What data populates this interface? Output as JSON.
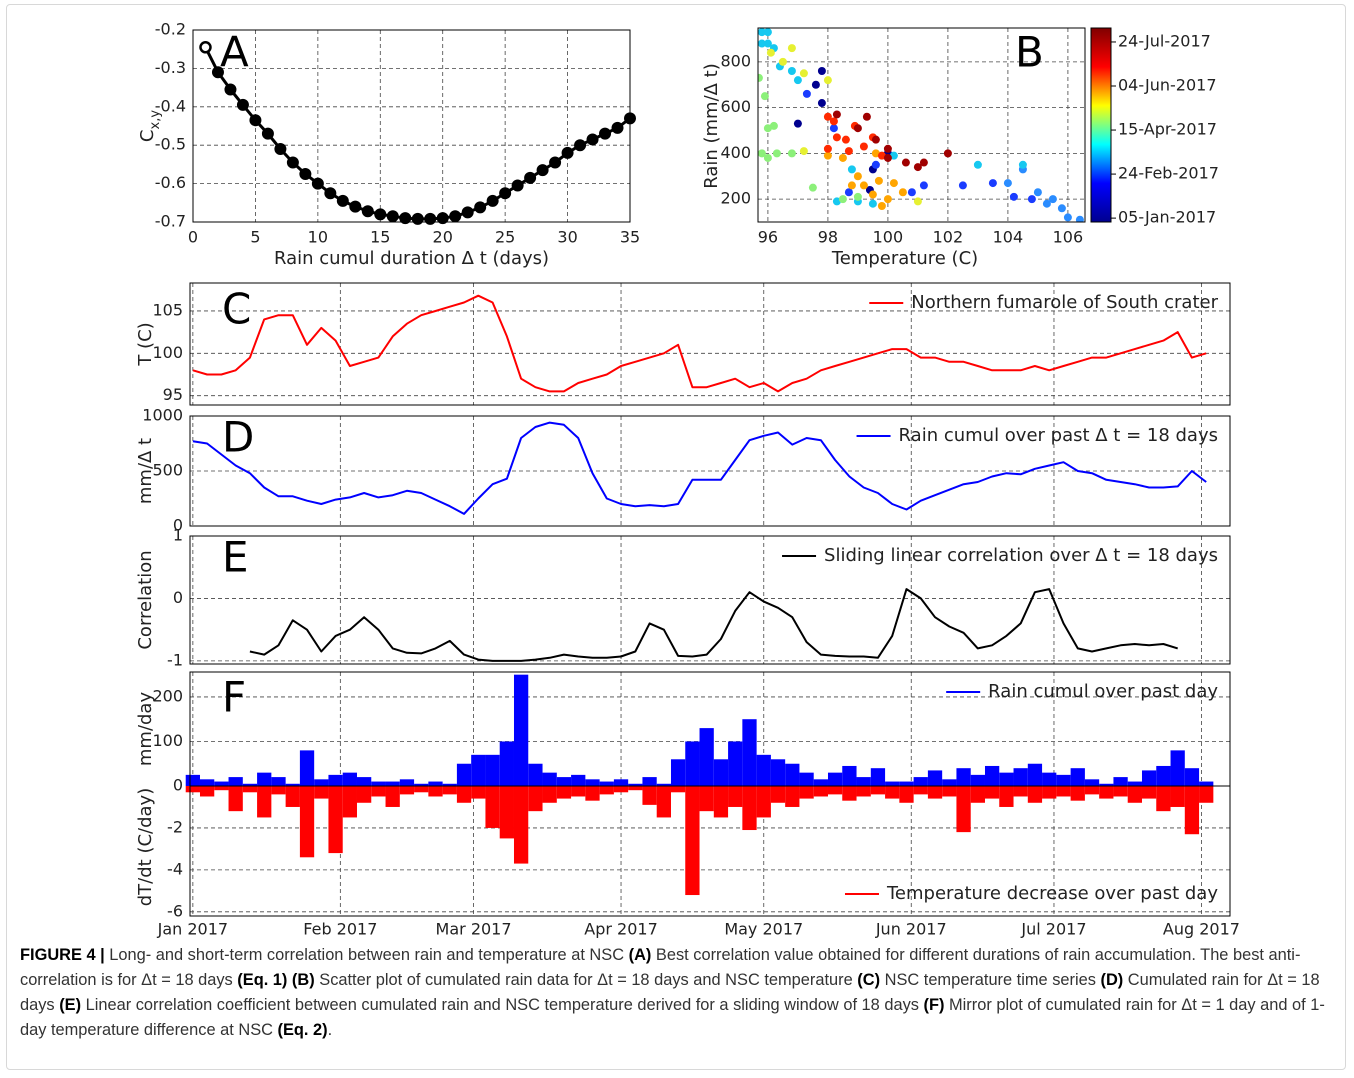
{
  "chart_data": [
    {
      "type": "line",
      "annotation": "A",
      "markers": true,
      "color": "#000000",
      "grid": true,
      "x": [
        1,
        2,
        3,
        4,
        5,
        6,
        7,
        8,
        9,
        10,
        11,
        12,
        13,
        14,
        15,
        16,
        17,
        18,
        19,
        20,
        21,
        22,
        23,
        24,
        25,
        26,
        27,
        28,
        29,
        30,
        31,
        32,
        33,
        34,
        35
      ],
      "values": [
        -0.245,
        -0.31,
        -0.355,
        -0.395,
        -0.435,
        -0.47,
        -0.51,
        -0.545,
        -0.575,
        -0.6,
        -0.625,
        -0.645,
        -0.66,
        -0.672,
        -0.68,
        -0.685,
        -0.69,
        -0.692,
        -0.692,
        -0.69,
        -0.685,
        -0.675,
        -0.662,
        -0.645,
        -0.625,
        -0.605,
        -0.585,
        -0.565,
        -0.545,
        -0.52,
        -0.5,
        -0.485,
        -0.47,
        -0.455,
        -0.43
      ],
      "xlim": [
        0,
        35
      ],
      "xticks": [
        0,
        5,
        10,
        15,
        20,
        25,
        30,
        35
      ],
      "ylim": [
        -0.7,
        -0.2
      ],
      "yticks": [
        -0.7,
        -0.6,
        -0.5,
        -0.4,
        -0.3,
        -0.2
      ],
      "xlabel": "Rain cumul duration Δ t (days)",
      "ylabel": {
        "text": "C",
        "subscript": "x,y"
      }
    },
    {
      "type": "scatter",
      "annotation": "B",
      "grid": true,
      "x": [
        104.5,
        104,
        105,
        105.5,
        106,
        106.4,
        105.8,
        104.2,
        103.5,
        102.5,
        101.2,
        100.8,
        104.5,
        103,
        104.8,
        105.3,
        97.8,
        97.6,
        97.3,
        97.8,
        98.2,
        97,
        99.5,
        98.7,
        99.6,
        100,
        99.4,
        95.8,
        96,
        95.8,
        96,
        96.2,
        96.4,
        96.8,
        97,
        99.5,
        98.3,
        100.2,
        98.8,
        99,
        95.7,
        95.9,
        96.1,
        96.5,
        96.8,
        97.2,
        98,
        96.2,
        96,
        95.8,
        96,
        96.3,
        96.8,
        97.5,
        98.5,
        99,
        101,
        97.2,
        98,
        98.5,
        99,
        99.2,
        99.7,
        100,
        99.5,
        98.8,
        99.8,
        100.5,
        99.6,
        100.2,
        98,
        98.2,
        98.6,
        98.9,
        99.2,
        99.8,
        98.3,
        99.5,
        98,
        98.7,
        99.6,
        100,
        100.6,
        101.2,
        102,
        100,
        99,
        101,
        98.3,
        99.3
      ],
      "y": [
        330,
        270,
        230,
        200,
        120,
        110,
        160,
        210,
        270,
        260,
        260,
        230,
        350,
        350,
        200,
        180,
        760,
        700,
        660,
        620,
        510,
        530,
        330,
        230,
        350,
        400,
        240,
        930,
        930,
        880,
        880,
        860,
        780,
        760,
        720,
        180,
        190,
        390,
        330,
        190,
        730,
        650,
        840,
        800,
        860,
        750,
        720,
        520,
        510,
        400,
        380,
        400,
        400,
        250,
        200,
        210,
        190,
        410,
        390,
        380,
        300,
        260,
        280,
        200,
        220,
        260,
        170,
        230,
        400,
        270,
        560,
        540,
        460,
        520,
        430,
        390,
        470,
        470,
        420,
        410,
        460,
        420,
        360,
        360,
        400,
        380,
        510,
        340,
        570,
        560
      ],
      "colors": [
        "#2a8cff",
        "#2a8cff",
        "#2a8cff",
        "#2a8cff",
        "#2a8cff",
        "#2a8cff",
        "#2a8cff",
        "#1a3cff",
        "#1a3cff",
        "#1a3cff",
        "#1a3cff",
        "#1a3cff",
        "#16c8f0",
        "#16c8f0",
        "#1a3cff",
        "#2a8cff",
        "#00008f",
        "#00008f",
        "#1a3cff",
        "#00008f",
        "#1a3cff",
        "#00008f",
        "#00008f",
        "#1a3cff",
        "#1a3cff",
        "#00008f",
        "#00008f",
        "#16c8f0",
        "#16c8f0",
        "#16c8f0",
        "#16c8f0",
        "#16c8f0",
        "#16c8f0",
        "#16c8f0",
        "#16c8f0",
        "#16c8f0",
        "#16c8f0",
        "#16c8f0",
        "#16c8f0",
        "#16c8f0",
        "#8cf07a",
        "#8cf07a",
        "#e6f032",
        "#e6f032",
        "#e6f032",
        "#e6f032",
        "#e6f032",
        "#8cf07a",
        "#8cf07a",
        "#8cf07a",
        "#8cf07a",
        "#8cf07a",
        "#8cf07a",
        "#8cf07a",
        "#8cf07a",
        "#8cf07a",
        "#e6f032",
        "#e6f032",
        "#ffa500",
        "#ffa500",
        "#ffa500",
        "#ffa500",
        "#ffa500",
        "#ffa500",
        "#ffa500",
        "#ffa500",
        "#ffa500",
        "#ffa500",
        "#ffa500",
        "#ffa500",
        "#ff2a00",
        "#ff2a00",
        "#ff2a00",
        "#ff2a00",
        "#ff2a00",
        "#ff2a00",
        "#ff2a00",
        "#ff2a00",
        "#ff2a00",
        "#ff2a00",
        "#a00000",
        "#a00000",
        "#a00000",
        "#a00000",
        "#a00000",
        "#a00000",
        "#a00000",
        "#a00000",
        "#a00000",
        "#a00000"
      ],
      "xlim": [
        95.67,
        106.57
      ],
      "xticks": [
        96,
        98,
        100,
        102,
        104,
        106
      ],
      "ylim": [
        100,
        948
      ],
      "yticks": [
        200,
        400,
        600,
        800
      ],
      "xlabel": "Temperature (C)",
      "ylabel": "Rain (mm/Δ t)",
      "colorbar": {
        "colors": [
          "#00008f",
          "#0000ff",
          "#00ffff",
          "#ffff00",
          "#ff0000",
          "#800000"
        ],
        "ticks": [
          "05-Jan-2017",
          "24-Feb-2017",
          "15-Apr-2017",
          "04-Jun-2017",
          "24-Jul-2017"
        ]
      }
    },
    {
      "type": "panels",
      "grid": true,
      "xlim": [
        -0.6,
        218
      ],
      "xticks": [
        {
          "value": 0,
          "label": "Jan 2017"
        },
        {
          "value": 31,
          "label": "Feb 2017"
        },
        {
          "value": 59,
          "label": "Mar 2017"
        },
        {
          "value": 90,
          "label": "Apr 2017"
        },
        {
          "value": 120,
          "label": "May 2017"
        },
        {
          "value": 151,
          "label": "Jun 2017"
        },
        {
          "value": 181,
          "label": "Jul 2017"
        },
        {
          "value": 212,
          "label": "Aug 2017"
        }
      ],
      "x": [
        0,
        3,
        6,
        9,
        12,
        15,
        18,
        21,
        24,
        27,
        30,
        33,
        36,
        39,
        42,
        45,
        48,
        51,
        54,
        57,
        60,
        63,
        66,
        69,
        72,
        75,
        78,
        81,
        84,
        87,
        90,
        93,
        96,
        99,
        102,
        105,
        108,
        111,
        114,
        117,
        120,
        123,
        126,
        129,
        132,
        135,
        138,
        141,
        144,
        147,
        150,
        153,
        156,
        159,
        162,
        165,
        168,
        171,
        174,
        177,
        180,
        183,
        186,
        189,
        192,
        195,
        198,
        201,
        204,
        207,
        210,
        213
      ],
      "panels": [
        {
          "type": "line",
          "annotation": "C",
          "ylabel": "T (C)",
          "ylim": [
            93.9,
            108.3
          ],
          "yticks": [
            95,
            100,
            105
          ],
          "legend": "upper right",
          "series": [
            {
              "name": "Northern fumarole of South crater",
              "color": "#ff0000",
              "values": [
                98,
                97.5,
                97.5,
                98,
                99.5,
                104,
                104.5,
                104.5,
                101,
                103,
                101.5,
                98.5,
                99,
                99.5,
                102,
                103.5,
                104.5,
                105,
                105.5,
                106,
                106.8,
                106,
                102,
                97,
                96,
                95.5,
                95.5,
                96.5,
                97,
                97.5,
                98.5,
                99,
                99.5,
                100,
                101,
                96,
                96,
                96.5,
                97,
                96,
                96.5,
                95.5,
                96.5,
                97,
                98,
                98.5,
                99,
                99.5,
                100,
                100.5,
                100.5,
                99.5,
                99.5,
                99,
                99,
                98.5,
                98,
                98,
                98,
                98.5,
                98,
                98.5,
                99,
                99.5,
                99.5,
                100,
                100.5,
                101,
                101.5,
                102.5,
                99.5,
                100
              ]
            }
          ]
        },
        {
          "type": "line",
          "annotation": "D",
          "ylabel": "mm/Δ t",
          "ylim": [
            0,
            1000
          ],
          "yticks": [
            0,
            500,
            1000
          ],
          "legend": "upper right",
          "series": [
            {
              "name": "Rain cumul over past Δ t = 18 days",
              "color": "#0000ff",
              "values": [
                770,
                750,
                650,
                550,
                480,
                350,
                270,
                270,
                230,
                200,
                240,
                260,
                300,
                260,
                280,
                320,
                300,
                240,
                180,
                110,
                250,
                380,
                430,
                800,
                900,
                940,
                920,
                800,
                480,
                250,
                200,
                180,
                190,
                180,
                200,
                420,
                420,
                420,
                600,
                780,
                820,
                850,
                740,
                800,
                780,
                600,
                450,
                350,
                300,
                200,
                150,
                230,
                280,
                330,
                380,
                400,
                450,
                480,
                470,
                520,
                550,
                580,
                500,
                480,
                420,
                400,
                380,
                350,
                350,
                360,
                500,
                400
              ]
            }
          ]
        },
        {
          "type": "line",
          "annotation": "E",
          "ylabel": "Correlation",
          "ylim": [
            -1.05,
            1
          ],
          "yticks": [
            -1,
            0,
            1
          ],
          "legend": "upper right",
          "series": [
            {
              "name": "Sliding linear correlation over Δ t = 18 days",
              "color": "#000000",
              "values": [
                null,
                null,
                null,
                null,
                -0.85,
                -0.9,
                -0.75,
                -0.35,
                -0.5,
                -0.85,
                -0.6,
                -0.5,
                -0.3,
                -0.5,
                -0.8,
                -0.87,
                -0.88,
                -0.8,
                -0.68,
                -0.9,
                -0.98,
                -1.0,
                -1.0,
                -1.0,
                -0.98,
                -0.95,
                -0.9,
                -0.93,
                -0.95,
                -0.95,
                -0.93,
                -0.85,
                -0.4,
                -0.5,
                -0.92,
                -0.93,
                -0.9,
                -0.65,
                -0.2,
                0.1,
                -0.05,
                -0.15,
                -0.3,
                -0.7,
                -0.9,
                -0.92,
                -0.93,
                -0.93,
                -0.95,
                -0.6,
                0.15,
                0.0,
                -0.3,
                -0.45,
                -0.55,
                -0.8,
                -0.75,
                -0.6,
                -0.4,
                0.1,
                0.15,
                -0.4,
                -0.8,
                -0.85,
                -0.8,
                -0.75,
                -0.73,
                -0.75,
                -0.73,
                -0.8,
                null,
                null
              ]
            }
          ]
        },
        {
          "type": "mirror-bar",
          "annotation": "F",
          "ylabel": "mm/day",
          "ylim": [
            0,
            256
          ],
          "yticks": [
            0,
            100,
            200
          ],
          "y2label": "dT/dt (C/day)",
          "y2lim": [
            -6.2,
            0
          ],
          "y2ticks": [
            -6,
            -4,
            -2
          ],
          "legend": [
            "upper right",
            "lower right"
          ],
          "series": [
            {
              "name": "Rain cumul over past day",
              "color": "#0000ff",
              "axis": "y",
              "values": [
                25,
                15,
                10,
                20,
                5,
                30,
                20,
                5,
                80,
                15,
                25,
                30,
                20,
                10,
                10,
                15,
                5,
                10,
                5,
                50,
                70,
                70,
                100,
                250,
                50,
                30,
                20,
                25,
                15,
                10,
                15,
                5,
                20,
                5,
                60,
                100,
                130,
                60,
                100,
                150,
                70,
                60,
                50,
                30,
                15,
                30,
                45,
                20,
                40,
                10,
                10,
                20,
                35,
                15,
                40,
                25,
                45,
                30,
                40,
                50,
                30,
                25,
                40,
                15,
                5,
                20,
                10,
                35,
                45,
                80,
                40,
                10
              ]
            },
            {
              "name": "Temperature decrease over past day",
              "color": "#ff0000",
              "axis": "y2",
              "values": [
                -0.3,
                -0.5,
                -0.2,
                -1.2,
                -0.3,
                -1.5,
                -0.4,
                -1.0,
                -3.4,
                -0.6,
                -3.2,
                -1.5,
                -0.8,
                -0.5,
                -1.0,
                -0.4,
                -0.3,
                -0.5,
                -0.4,
                -0.8,
                -0.6,
                -2.0,
                -2.5,
                -3.7,
                -1.2,
                -0.8,
                -0.6,
                -0.5,
                -0.7,
                -0.4,
                -0.3,
                -0.2,
                -0.9,
                -1.5,
                -0.3,
                -5.2,
                -1.2,
                -1.5,
                -1.0,
                -2.1,
                -1.5,
                -0.8,
                -1.0,
                -0.6,
                -0.5,
                -0.4,
                -0.7,
                -0.5,
                -0.4,
                -0.6,
                -0.8,
                -0.4,
                -0.6,
                -0.5,
                -2.2,
                -0.8,
                -0.6,
                -1.0,
                -0.5,
                -0.8,
                -0.6,
                -0.5,
                -0.7,
                -0.4,
                -0.6,
                -0.5,
                -0.8,
                -0.6,
                -1.2,
                -1.0,
                -2.3,
                -0.8
              ]
            }
          ]
        }
      ]
    }
  ],
  "caption": [
    {
      "text": "FIGURE 4 |",
      "bold": true
    },
    {
      "text": " Long- and short-term correlation between rain and temperature at NSC ",
      "bold": false
    },
    {
      "text": "(A)",
      "bold": true
    },
    {
      "text": " Best correlation value obtained for different durations of rain accumulation. The best anti-correlation is for Δt = 18 days ",
      "bold": false
    },
    {
      "text": "(Eq. 1) (B)",
      "bold": true
    },
    {
      "text": " Scatter plot of cumulated rain data for Δt = 18 days and NSC temperature ",
      "bold": false
    },
    {
      "text": "(C)",
      "bold": true
    },
    {
      "text": " NSC temperature time series ",
      "bold": false
    },
    {
      "text": "(D)",
      "bold": true
    },
    {
      "text": " Cumulated rain for Δt = 18 days ",
      "bold": false
    },
    {
      "text": "(E)",
      "bold": true
    },
    {
      "text": " Linear correlation coefficient between cumulated rain and NSC temperature derived for a sliding window of 18 days ",
      "bold": false
    },
    {
      "text": "(F)",
      "bold": true
    },
    {
      "text": " Mirror plot of cumulated rain for Δt = 1 day and of 1-day temperature difference at NSC ",
      "bold": false
    },
    {
      "text": "(Eq. 2)",
      "bold": true
    },
    {
      "text": ".",
      "bold": false
    }
  ]
}
